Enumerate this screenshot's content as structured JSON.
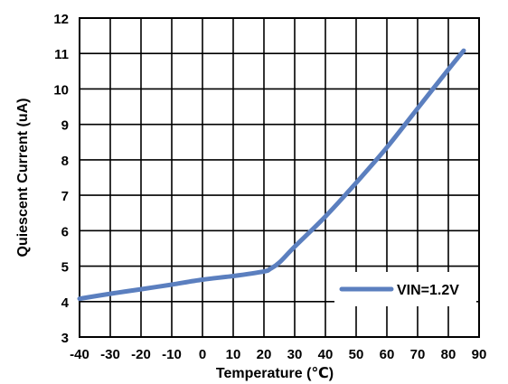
{
  "chart_data": {
    "type": "line",
    "title": "",
    "xlabel": "Temperature (℃)",
    "ylabel": "Quiescent Current (uA)",
    "xlim": [
      -40,
      90
    ],
    "ylim": [
      3,
      12
    ],
    "x_ticks": [
      -40,
      -30,
      -20,
      -10,
      0,
      10,
      20,
      30,
      40,
      50,
      60,
      70,
      80,
      90
    ],
    "y_ticks": [
      3,
      4,
      5,
      6,
      7,
      8,
      9,
      10,
      11,
      12
    ],
    "grid": true,
    "legend_position": "bottom-right",
    "series": [
      {
        "name": "VIN=1.2V",
        "color": "#5b7fbf",
        "x": [
          -40,
          -30,
          -20,
          -10,
          0,
          10,
          20,
          22,
          25,
          30,
          40,
          50,
          60,
          70,
          80,
          85
        ],
        "y": [
          4.08,
          4.22,
          4.35,
          4.48,
          4.62,
          4.72,
          4.85,
          4.92,
          5.1,
          5.55,
          6.4,
          7.35,
          8.35,
          9.45,
          10.55,
          11.08
        ]
      }
    ]
  }
}
